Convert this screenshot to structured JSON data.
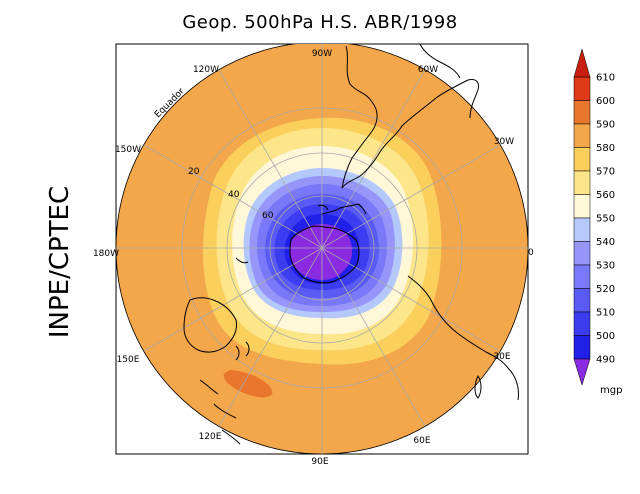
{
  "title": "Geop. 500hPa H.S. ABR/1998",
  "side_label": "INPE/CPTEC",
  "longitude_labels": {
    "top": "90W",
    "top_right_1": "60W",
    "top_right_2": "30W",
    "right": "0",
    "bottom_right_1": "30E",
    "bottom_right_2": "60E",
    "bottom": "90E",
    "bottom_left_1": "120E",
    "bottom_left_2": "150E",
    "left": "180W",
    "top_left_1": "150W",
    "top_left_2": "120W"
  },
  "latitude_labels": [
    "20",
    "40",
    "60"
  ],
  "equator_label": "Equador",
  "colorbar": {
    "unit": "mgp",
    "levels": [
      "490",
      "500",
      "510",
      "520",
      "530",
      "540",
      "550",
      "560",
      "570",
      "580",
      "590",
      "600",
      "610"
    ],
    "colors": [
      "#8a2be2",
      "#2020e8",
      "#3c3cf0",
      "#5a5af5",
      "#7878f8",
      "#9696fa",
      "#b4c8fc",
      "#fff8d8",
      "#fde68a",
      "#fbcf5c",
      "#f4a64a",
      "#e8762c",
      "#e03a18",
      "#c81e10"
    ]
  },
  "chart_data": {
    "type": "heatmap",
    "title": "Geop. 500hPa H.S. ABR/1998",
    "field": "500 hPa geopotential height, Southern Hemisphere, April 1998",
    "unit": "mgp",
    "projection": "polar stereographic, South Pole centered",
    "contour_levels": [
      490,
      500,
      510,
      520,
      530,
      540,
      550,
      560,
      570,
      580,
      590,
      600,
      610
    ],
    "minimum_region": "below 490 mgp over Antarctica (pole)",
    "maximum_region": "590-600 mgp small patch near 150E-120E mid latitudes",
    "background_value": "580-590 mgp in tropics/subtropics"
  }
}
